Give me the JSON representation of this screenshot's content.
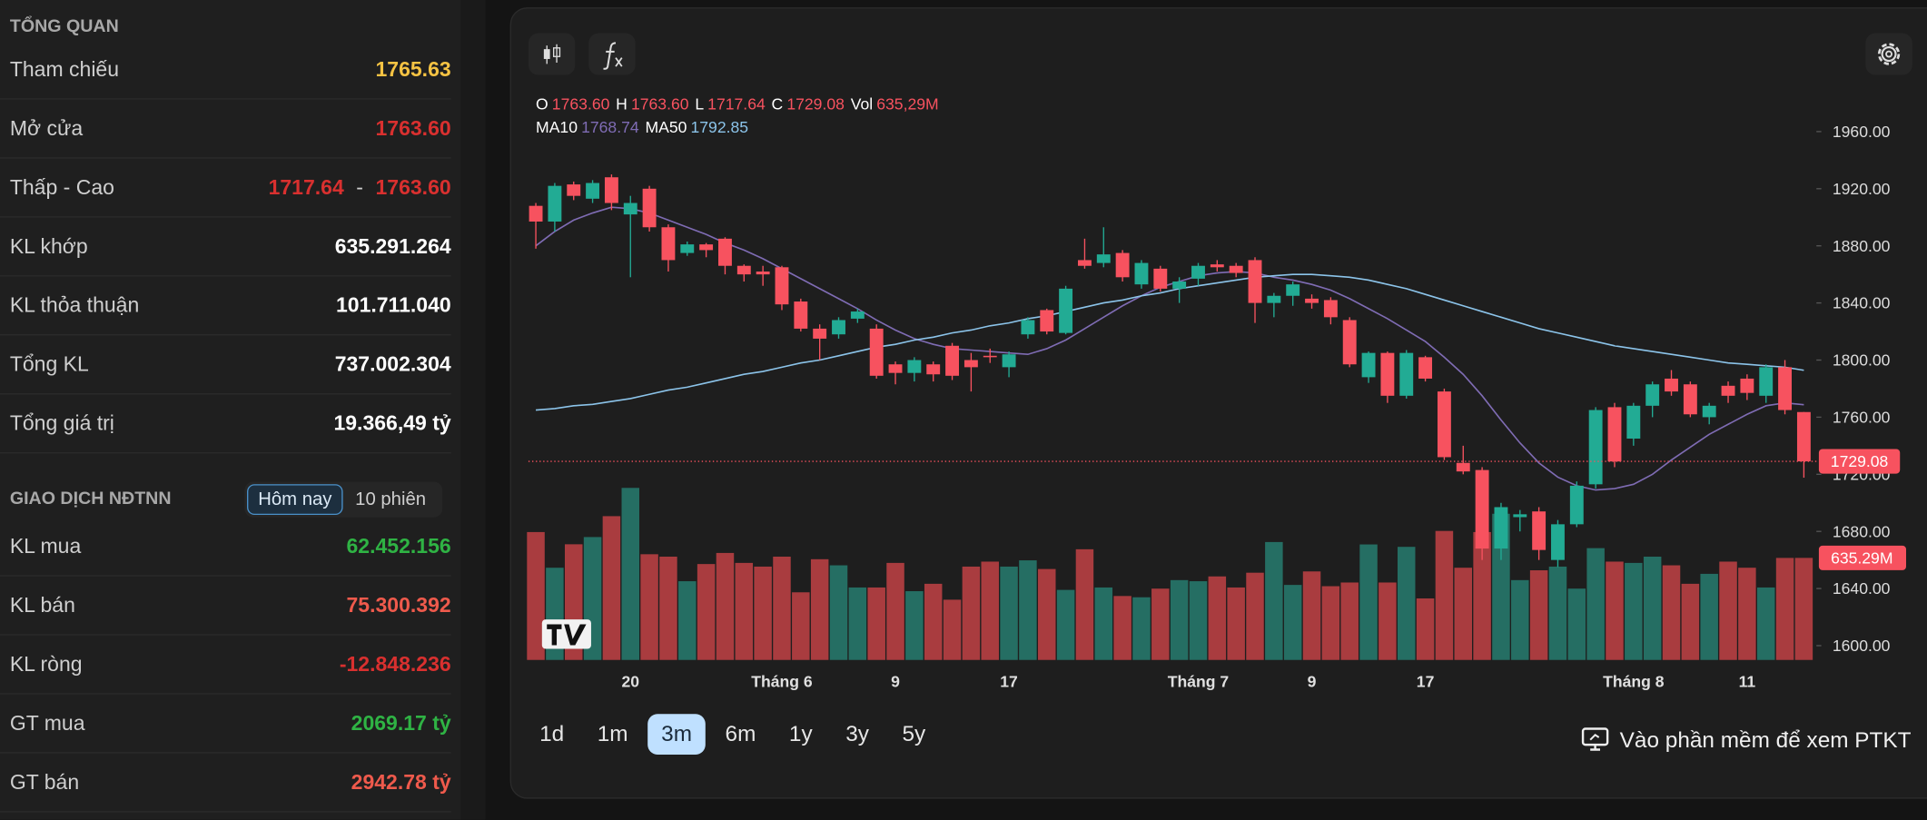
{
  "overview": {
    "title": "TỔNG QUAN",
    "rows": [
      {
        "label": "Tham chiếu",
        "value": "1765.63",
        "color": "#f5c343"
      },
      {
        "label": "Mở cửa",
        "value": "1763.60",
        "color": "#d9302f"
      },
      {
        "label": "Thấp - Cao",
        "low": "1717.64",
        "separator": "-",
        "high": "1763.60",
        "color": "#d9302f"
      },
      {
        "label": "KL khớp",
        "value": "635.291.264",
        "color": "#ffffff"
      },
      {
        "label": "KL thỏa thuận",
        "value": "101.711.040",
        "color": "#ffffff"
      },
      {
        "label": "Tổng KL",
        "value": "737.002.304",
        "color": "#ffffff"
      },
      {
        "label": "Tổng giá trị",
        "value": "19.366,49 tỷ",
        "color": "#ffffff"
      }
    ]
  },
  "foreign": {
    "title": "GIAO DỊCH NĐTNN",
    "tabs": [
      "Hôm nay",
      "10 phiên"
    ],
    "active_tab": 0,
    "rows": [
      {
        "label": "KL mua",
        "value": "62.452.156",
        "color": "#2fb344"
      },
      {
        "label": "KL bán",
        "value": "75.300.392",
        "color": "#ef5a4c"
      },
      {
        "label": "KL ròng",
        "value": "-12.848.236",
        "color": "#d9302f"
      },
      {
        "label": "GT mua",
        "value": "2069.17 tỷ",
        "color": "#2fb344"
      },
      {
        "label": "GT bán",
        "value": "2942.78 tỷ",
        "color": "#ef5a4c"
      }
    ]
  },
  "chart_data": {
    "type": "candlestick",
    "ohlc_legend": [
      {
        "key": "O",
        "value": "1763.60"
      },
      {
        "key": "H",
        "value": "1763.60"
      },
      {
        "key": "L",
        "value": "1717.64"
      },
      {
        "key": "C",
        "value": "1729.08"
      },
      {
        "key": "Vol",
        "value": "635,29M"
      }
    ],
    "categories": [
      null,
      null,
      null,
      null,
      null,
      "20",
      null,
      null,
      null,
      null,
      null,
      null,
      null,
      "Tháng 6",
      null,
      null,
      null,
      null,
      null,
      "9",
      null,
      null,
      null,
      null,
      null,
      "17",
      null,
      null,
      null,
      null,
      null,
      null,
      null,
      null,
      null,
      "Tháng 7",
      null,
      null,
      null,
      null,
      null,
      "9",
      null,
      null,
      null,
      null,
      null,
      "17",
      null,
      null,
      null,
      null,
      null,
      null,
      null,
      null,
      null,
      null,
      "Tháng 8",
      null,
      null,
      null,
      null,
      null,
      "11",
      null,
      null,
      null
    ],
    "open": [
      1908,
      1897,
      1923,
      1913,
      1928,
      1902,
      1920,
      1893,
      1875,
      1881,
      1885,
      1866,
      1862,
      1865,
      1841,
      1822,
      1818,
      1829,
      1822,
      1797,
      1791,
      1797,
      1810,
      1800,
      1803,
      1795,
      1818,
      1835,
      1819,
      1870,
      1868,
      1875,
      1853,
      1864,
      1850,
      1857,
      1867,
      1866,
      1870,
      1840,
      1845,
      1843,
      1842,
      1828,
      1788,
      1805,
      1775,
      1802,
      1778,
      1728,
      1723,
      1668,
      1690,
      1694,
      1660,
      1685,
      1713,
      1767,
      1745,
      1768,
      1787,
      1783,
      1760,
      1782,
      1787,
      1775,
      1795,
      1763.6
    ],
    "high": [
      1910,
      1924,
      1925,
      1926,
      1930,
      1915,
      1922,
      1895,
      1883,
      1882,
      1886,
      1867,
      1866,
      1866,
      1843,
      1825,
      1830,
      1836,
      1825,
      1799,
      1802,
      1799,
      1812,
      1805,
      1808,
      1806,
      1830,
      1836,
      1852,
      1885,
      1893,
      1877,
      1870,
      1866,
      1858,
      1868,
      1870,
      1868,
      1872,
      1847,
      1855,
      1846,
      1844,
      1830,
      1806,
      1806,
      1807,
      1803,
      1780,
      1740,
      1725,
      1700,
      1695,
      1697,
      1688,
      1715,
      1767,
      1770,
      1770,
      1785,
      1793,
      1785,
      1770,
      1785,
      1790,
      1797,
      1800,
      1763.6
    ],
    "low": [
      1878,
      1890,
      1912,
      1910,
      1905,
      1858,
      1890,
      1862,
      1873,
      1872,
      1860,
      1855,
      1852,
      1835,
      1820,
      1800,
      1815,
      1826,
      1787,
      1783,
      1785,
      1785,
      1786,
      1778,
      1798,
      1788,
      1815,
      1818,
      1818,
      1864,
      1865,
      1855,
      1850,
      1848,
      1840,
      1852,
      1862,
      1858,
      1826,
      1830,
      1838,
      1836,
      1825,
      1795,
      1784,
      1770,
      1773,
      1785,
      1730,
      1720,
      1660,
      1660,
      1680,
      1660,
      1655,
      1683,
      1710,
      1725,
      1740,
      1760,
      1775,
      1760,
      1755,
      1770,
      1772,
      1770,
      1762,
      1717.64
    ],
    "close": [
      1897,
      1922,
      1915,
      1924,
      1910,
      1910,
      1893,
      1870,
      1881,
      1877,
      1866,
      1860,
      1860,
      1839,
      1822,
      1815,
      1828,
      1834,
      1789,
      1791,
      1800,
      1790,
      1789,
      1795,
      1802,
      1804,
      1828,
      1820,
      1850,
      1866,
      1874,
      1858,
      1868,
      1850,
      1855,
      1866,
      1865,
      1861,
      1840,
      1845,
      1853,
      1840,
      1830,
      1797,
      1805,
      1775,
      1805,
      1787,
      1732,
      1722,
      1668,
      1697,
      1692,
      1667,
      1685,
      1712,
      1765,
      1729,
      1768,
      1783,
      1778,
      1762,
      1768,
      1775,
      1777,
      1795,
      1765,
      1729.08
    ],
    "volume": [
      796,
      574,
      720,
      765,
      895,
      1071,
      658,
      643,
      490,
      597,
      666,
      604,
      581,
      643,
      421,
      627,
      589,
      451,
      451,
      604,
      428,
      474,
      375,
      581,
      612,
      581,
      620,
      566,
      436,
      689,
      451,
      398,
      390,
      444,
      497,
      490,
      520,
      451,
      543,
      734,
      467,
      551,
      459,
      482,
      719,
      482,
      704,
      383,
      803,
      574,
      796,
      910,
      497,
      558,
      581,
      444,
      696,
      612,
      604,
      643,
      589,
      474,
      536,
      612,
      574,
      451,
      635,
      635.29
    ],
    "lines": [
      {
        "name": "MA10",
        "color": "#7f6cb4",
        "last_label": "1768.74",
        "values": [
          1880,
          1890,
          1898,
          1903,
          1907,
          1906,
          1903,
          1898,
          1893,
          1888,
          1882,
          1877,
          1871,
          1864,
          1857,
          1850,
          1843,
          1836,
          1828,
          1821,
          1815,
          1811,
          1808,
          1807,
          1806,
          1805,
          1804,
          1808,
          1814,
          1822,
          1830,
          1838,
          1845,
          1851,
          1855,
          1859,
          1861,
          1862,
          1861,
          1858,
          1856,
          1853,
          1849,
          1843,
          1836,
          1829,
          1821,
          1813,
          1802,
          1790,
          1775,
          1758,
          1742,
          1728,
          1718,
          1712,
          1709,
          1710,
          1713,
          1720,
          1730,
          1739,
          1748,
          1755,
          1762,
          1768,
          1770,
          1768.74
        ]
      },
      {
        "name": "MA50",
        "color": "#8cc4ea",
        "last_label": "1792.85",
        "values": [
          1765,
          1766,
          1768,
          1769,
          1771,
          1773,
          1776,
          1779,
          1781,
          1784,
          1787,
          1790,
          1792,
          1795,
          1798,
          1800,
          1803,
          1806,
          1809,
          1811,
          1814,
          1816,
          1819,
          1821,
          1824,
          1826,
          1829,
          1831,
          1834,
          1837,
          1840,
          1842,
          1845,
          1847,
          1850,
          1852,
          1854,
          1856,
          1858,
          1859,
          1860,
          1860,
          1859,
          1858,
          1856,
          1853,
          1850,
          1846,
          1842,
          1838,
          1834,
          1830,
          1826,
          1822,
          1819,
          1816,
          1813,
          1810,
          1808,
          1806,
          1804,
          1802,
          1800,
          1798,
          1797,
          1796,
          1795,
          1792.85
        ]
      }
    ],
    "up_color": "#22ab94",
    "down_color": "#f7525f",
    "volume_up_color": "#256e63",
    "volume_down_color": "#a93c3f",
    "ylim": [
      1590,
      1979
    ],
    "yticks": [
      {
        "value": 1600,
        "label": "1600.00"
      },
      {
        "value": 1640,
        "label": "1640.00"
      },
      {
        "value": 1680,
        "label": "1680.00"
      },
      {
        "value": 1720,
        "label": "1720.00"
      },
      {
        "value": 1760,
        "label": "1760.00"
      },
      {
        "value": 1800,
        "label": "1800.00"
      },
      {
        "value": 1840,
        "label": "1840.00"
      },
      {
        "value": 1880,
        "label": "1880.00"
      },
      {
        "value": 1920,
        "label": "1920.00"
      },
      {
        "value": 1960,
        "label": "1960.00"
      }
    ],
    "volume_lim": [
      0,
      3458
    ],
    "price_tag": "1729.08",
    "volume_tag": "635.29M"
  },
  "ranges": [
    "1d",
    "1m",
    "3m",
    "6m",
    "1y",
    "3y",
    "5y"
  ],
  "active_range": 2,
  "cta": "Vào phần mềm để xem PTKT"
}
